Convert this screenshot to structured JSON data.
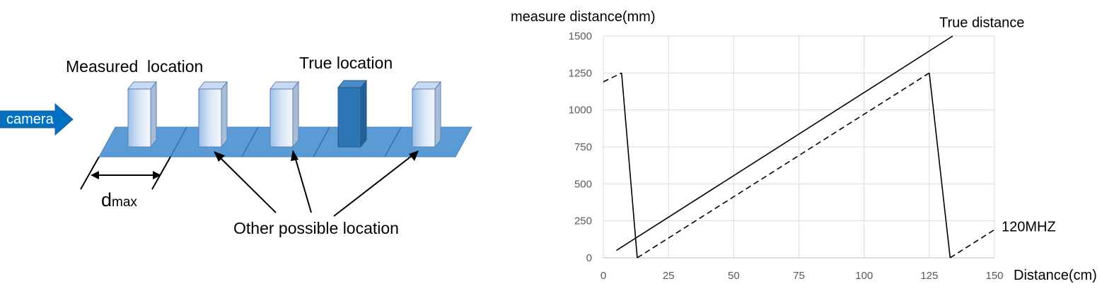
{
  "diagram": {
    "camera_label": "camera",
    "measured_label": "Measured  location",
    "true_label": "True location",
    "other_label": "Other possible location",
    "dmax_main": "d",
    "dmax_sub": "max",
    "colors": {
      "platform": "#5b9bd5",
      "platform_edge": "#4a86c0",
      "true_block": "#2e75b6",
      "camera": "#0070c0"
    }
  },
  "chart_data": {
    "type": "line",
    "title": "",
    "ylabel": "measure distance(mm)",
    "xlabel": "Distance(cm)",
    "xlim": [
      0,
      150
    ],
    "ylim": [
      0,
      1500
    ],
    "x_ticks": [
      "0",
      "25",
      "50",
      "75",
      "100",
      "125",
      "150"
    ],
    "y_ticks": [
      "0",
      "250",
      "500",
      "750",
      "1000",
      "1250",
      "1500"
    ],
    "grid": true,
    "series": [
      {
        "name": "True distance",
        "style": "solid",
        "points": [
          [
            5,
            50
          ],
          [
            134,
            1500
          ]
        ]
      },
      {
        "name": "",
        "style": "solid",
        "points": [
          [
            7,
            1250
          ],
          [
            13,
            0
          ]
        ]
      },
      {
        "name": "",
        "style": "dashed",
        "points": [
          [
            0,
            1190
          ],
          [
            7,
            1250
          ]
        ]
      },
      {
        "name": "",
        "style": "dashed",
        "points": [
          [
            13,
            0
          ],
          [
            125,
            1250
          ]
        ]
      },
      {
        "name": "",
        "style": "solid",
        "points": [
          [
            125,
            1250
          ],
          [
            133,
            0
          ]
        ]
      },
      {
        "name": "120MHZ",
        "style": "dashed",
        "points": [
          [
            133,
            0
          ],
          [
            150,
            190
          ]
        ]
      }
    ],
    "annotations": [
      {
        "text": "True distance",
        "x": 135,
        "y": 1560
      },
      {
        "text": "120MHZ",
        "x": 152,
        "y": 180
      }
    ]
  }
}
